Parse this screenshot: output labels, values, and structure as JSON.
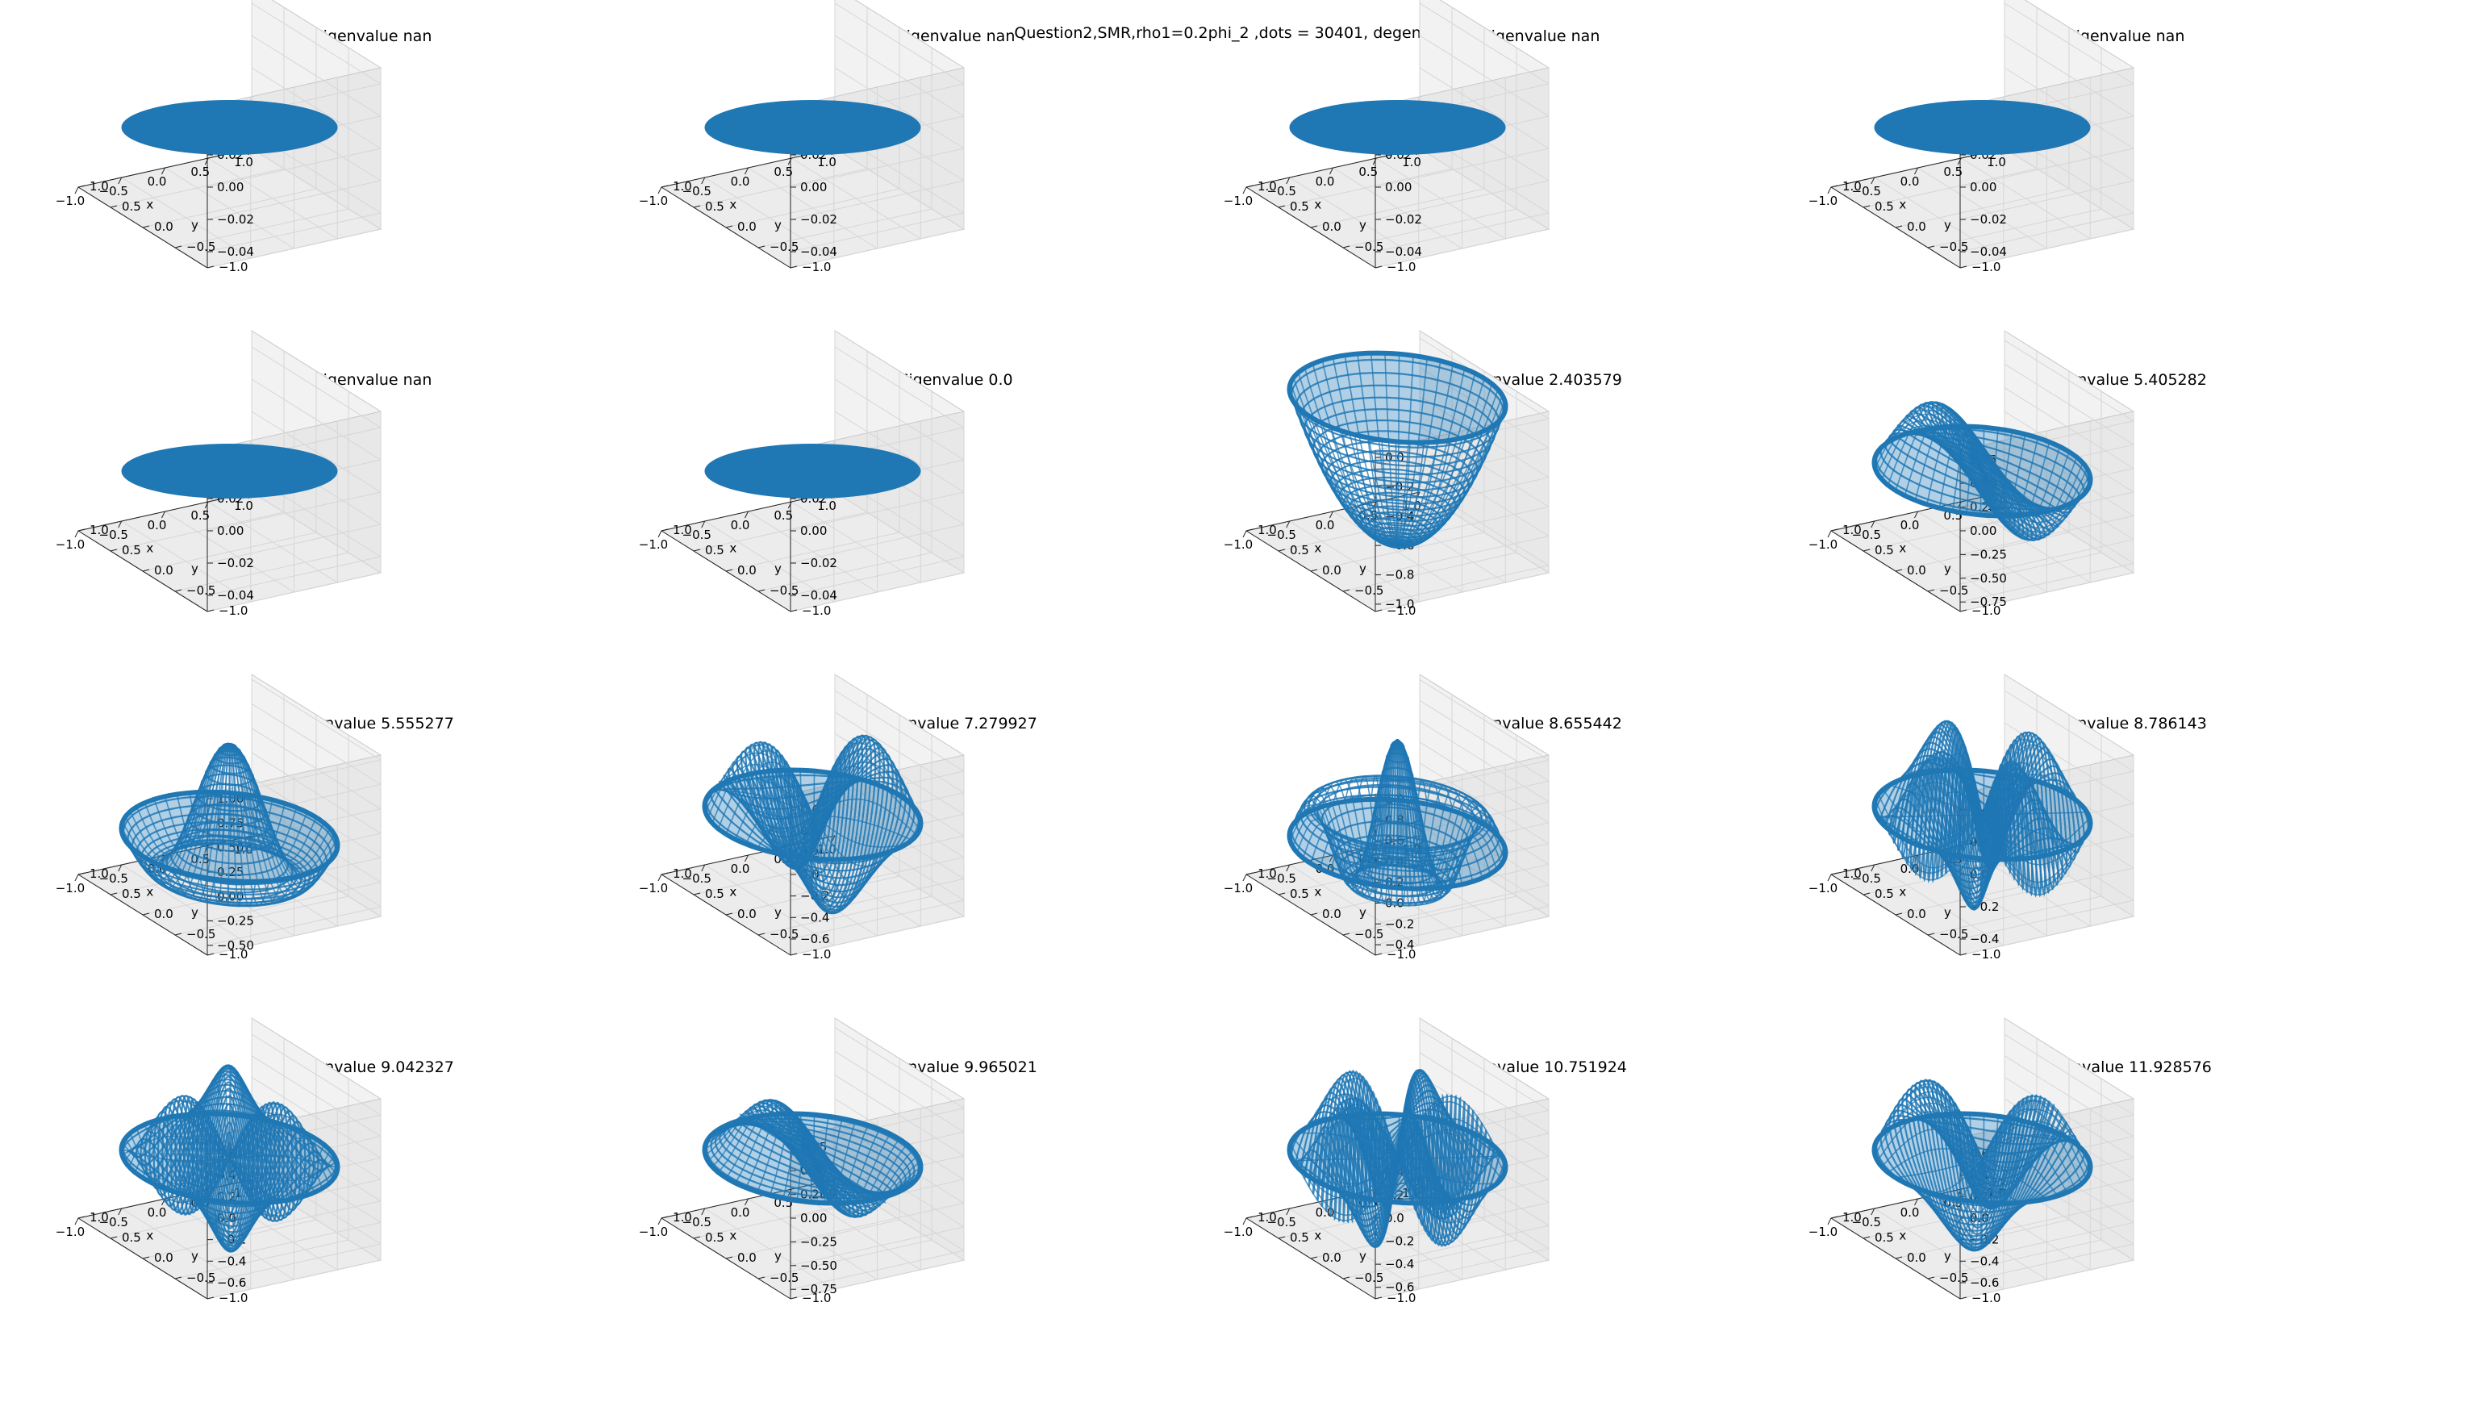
{
  "figure": {
    "suptitle": "Question2,SMR,rho1=0.2phi_2 ,dots = 30401, degeneracy"
  },
  "colors": {
    "surface": "#1f77b4",
    "pane": "#f2f2f2",
    "grid": "#d6d6d6"
  },
  "chart_data": [
    {
      "type": "surface",
      "title": "Eigenvalue nan",
      "xlabel": "x",
      "ylabel": "y",
      "xticks": [
        "−1.0",
        "−0.5",
        "0.0",
        "0.5",
        "1.0"
      ],
      "yticks": [
        "−1.0",
        "−0.5",
        "0.0",
        "0.5",
        "1.0"
      ],
      "zticks": [
        "−0.04",
        "−0.02",
        "0.00",
        "0.02",
        "0.04"
      ],
      "zlim": [
        -0.05,
        0.05
      ],
      "shape": "flat"
    },
    {
      "type": "surface",
      "title": "Eigenvalue nan",
      "xlabel": "x",
      "ylabel": "y",
      "xticks": [
        "−1.0",
        "−0.5",
        "0.0",
        "0.5",
        "1.0"
      ],
      "yticks": [
        "−1.0",
        "−0.5",
        "0.0",
        "0.5",
        "1.0"
      ],
      "zticks": [
        "−0.04",
        "−0.02",
        "0.00",
        "0.02",
        "0.04"
      ],
      "zlim": [
        -0.05,
        0.05
      ],
      "shape": "flat"
    },
    {
      "type": "surface",
      "title": "Eigenvalue nan",
      "xlabel": "x",
      "ylabel": "y",
      "xticks": [
        "−1.0",
        "−0.5",
        "0.0",
        "0.5",
        "1.0"
      ],
      "yticks": [
        "−1.0",
        "−0.5",
        "0.0",
        "0.5",
        "1.0"
      ],
      "zticks": [
        "−0.04",
        "−0.02",
        "0.00",
        "0.02",
        "0.04"
      ],
      "zlim": [
        -0.05,
        0.05
      ],
      "shape": "flat"
    },
    {
      "type": "surface",
      "title": "Eigenvalue nan",
      "xlabel": "x",
      "ylabel": "y",
      "xticks": [
        "−1.0",
        "−0.5",
        "0.0",
        "0.5",
        "1.0"
      ],
      "yticks": [
        "−1.0",
        "−0.5",
        "0.0",
        "0.5",
        "1.0"
      ],
      "zticks": [
        "−0.04",
        "−0.02",
        "0.00",
        "0.02",
        "0.04"
      ],
      "zlim": [
        -0.05,
        0.05
      ],
      "shape": "flat"
    },
    {
      "type": "surface",
      "title": "Eigenvalue nan",
      "xlabel": "x",
      "ylabel": "y",
      "xticks": [
        "−1.0",
        "−0.5",
        "0.0",
        "0.5",
        "1.0"
      ],
      "yticks": [
        "−1.0",
        "−0.5",
        "0.0",
        "0.5",
        "1.0"
      ],
      "zticks": [
        "−0.04",
        "−0.02",
        "0.00",
        "0.02",
        "0.04"
      ],
      "zlim": [
        -0.05,
        0.05
      ],
      "shape": "flat"
    },
    {
      "type": "surface",
      "title": "Eigenvalue 0.0",
      "xlabel": "x",
      "ylabel": "y",
      "xticks": [
        "−1.0",
        "−0.5",
        "0.0",
        "0.5",
        "1.0"
      ],
      "yticks": [
        "−1.0",
        "−0.5",
        "0.0",
        "0.5",
        "1.0"
      ],
      "zticks": [
        "−0.04",
        "−0.02",
        "0.00",
        "0.02",
        "0.04"
      ],
      "zlim": [
        -0.05,
        0.05
      ],
      "shape": "flat"
    },
    {
      "type": "surface",
      "title": "Eigenvalue 2.403579",
      "xlabel": "x",
      "ylabel": "y",
      "xticks": [
        "−1.0",
        "−0.5",
        "0.0",
        "0.5",
        "1.0"
      ],
      "yticks": [
        "−1.0",
        "−0.5",
        "0.0",
        "0.5",
        "1.0"
      ],
      "zticks": [
        "−1.0",
        "−0.8",
        "−0.6",
        "−0.4",
        "−0.2",
        "0.0"
      ],
      "zlim": [
        -1.05,
        0.05
      ],
      "shape": "bowl"
    },
    {
      "type": "surface",
      "title": "Eigenvalue 5.405282",
      "xlabel": "x",
      "ylabel": "y",
      "xticks": [
        "−1.0",
        "−0.5",
        "0.0",
        "0.5",
        "1.0"
      ],
      "yticks": [
        "−1.0",
        "−0.5",
        "0.0",
        "0.5",
        "1.0"
      ],
      "zticks": [
        "−0.75",
        "−0.50",
        "−0.25",
        "0.00",
        "0.25",
        "0.50",
        "0.75"
      ],
      "zlim": [
        -0.85,
        0.85
      ],
      "shape": "m1"
    },
    {
      "type": "surface",
      "title": "Eigenvalue 5.555277",
      "xlabel": "x",
      "ylabel": "y",
      "xticks": [
        "−1.0",
        "−0.5",
        "0.0",
        "0.5",
        "1.0"
      ],
      "yticks": [
        "−1.0",
        "−0.5",
        "0.0",
        "0.5",
        "1.0"
      ],
      "zticks": [
        "−0.50",
        "−0.25",
        "0.00",
        "0.25",
        "0.50",
        "0.75",
        "1.00"
      ],
      "zlim": [
        -0.6,
        1.05
      ],
      "shape": "j0"
    },
    {
      "type": "surface",
      "title": "Eigenvalue 7.279927",
      "xlabel": "x",
      "ylabel": "y",
      "xticks": [
        "−1.0",
        "−0.5",
        "0.0",
        "0.5",
        "1.0"
      ],
      "yticks": [
        "−1.0",
        "−0.5",
        "0.0",
        "0.5",
        "1.0"
      ],
      "zticks": [
        "−0.6",
        "−0.4",
        "−0.2",
        "0.0",
        "0.2",
        "0.4",
        "0.6"
      ],
      "zlim": [
        -0.75,
        0.75
      ],
      "shape": "m2"
    },
    {
      "type": "surface",
      "title": "Eigenvalue 8.655442",
      "xlabel": "x",
      "ylabel": "y",
      "xticks": [
        "−1.0",
        "−0.5",
        "0.0",
        "0.5",
        "1.0"
      ],
      "yticks": [
        "−1.0",
        "−0.5",
        "0.0",
        "0.5",
        "1.0"
      ],
      "zticks": [
        "−0.4",
        "−0.2",
        "0.0",
        "0.2",
        "0.4",
        "0.6",
        "0.8",
        "1.0"
      ],
      "zlim": [
        -0.5,
        1.05
      ],
      "shape": "j0b"
    },
    {
      "type": "surface",
      "title": "Eigenvalue 8.786143",
      "xlabel": "x",
      "ylabel": "y",
      "xticks": [
        "−1.0",
        "−0.5",
        "0.0",
        "0.5",
        "1.0"
      ],
      "yticks": [
        "−1.0",
        "−0.5",
        "0.0",
        "0.5",
        "1.0"
      ],
      "zticks": [
        "−0.4",
        "−0.2",
        "0.0",
        "0.2",
        "0.4"
      ],
      "zlim": [
        -0.5,
        0.5
      ],
      "shape": "m4"
    },
    {
      "type": "surface",
      "title": "Eigenvalue 9.042327",
      "xlabel": "x",
      "ylabel": "y",
      "xticks": [
        "−1.0",
        "−0.5",
        "0.0",
        "0.5",
        "1.0"
      ],
      "yticks": [
        "−1.0",
        "−0.5",
        "0.0",
        "0.5",
        "1.0"
      ],
      "zticks": [
        "−0.6",
        "−0.4",
        "−0.2",
        "0.0",
        "0.2",
        "0.4",
        "0.6"
      ],
      "zlim": [
        -0.75,
        0.75
      ],
      "shape": "m3"
    },
    {
      "type": "surface",
      "title": "Eigenvalue 9.965021",
      "xlabel": "x",
      "ylabel": "y",
      "xticks": [
        "−1.0",
        "−0.5",
        "0.0",
        "0.5",
        "1.0"
      ],
      "yticks": [
        "−1.0",
        "−0.5",
        "0.0",
        "0.5",
        "1.0"
      ],
      "zticks": [
        "−0.75",
        "−0.50",
        "−0.25",
        "0.00",
        "0.25",
        "0.50",
        "0.75"
      ],
      "zlim": [
        -0.85,
        0.85
      ],
      "shape": "m1b"
    },
    {
      "type": "surface",
      "title": "Eigenvalue 10.751924",
      "xlabel": "x",
      "ylabel": "y",
      "xticks": [
        "−1.0",
        "−0.5",
        "0.0",
        "0.5",
        "1.0"
      ],
      "yticks": [
        "−1.0",
        "−0.5",
        "0.0",
        "0.5",
        "1.0"
      ],
      "zticks": [
        "−0.6",
        "−0.4",
        "−0.2",
        "0.0",
        "0.2",
        "0.4",
        "0.6"
      ],
      "zlim": [
        -0.7,
        0.7
      ],
      "shape": "m5"
    },
    {
      "type": "surface",
      "title": "Eigenvalue 11.928576",
      "xlabel": "x",
      "ylabel": "y",
      "xticks": [
        "−1.0",
        "−0.5",
        "0.0",
        "0.5",
        "1.0"
      ],
      "yticks": [
        "−1.0",
        "−0.5",
        "0.0",
        "0.5",
        "1.0"
      ],
      "zticks": [
        "−0.6",
        "−0.4",
        "−0.2",
        "0.0",
        "0.2",
        "0.4",
        "0.6"
      ],
      "zlim": [
        -0.75,
        0.75
      ],
      "shape": "m2b"
    }
  ]
}
